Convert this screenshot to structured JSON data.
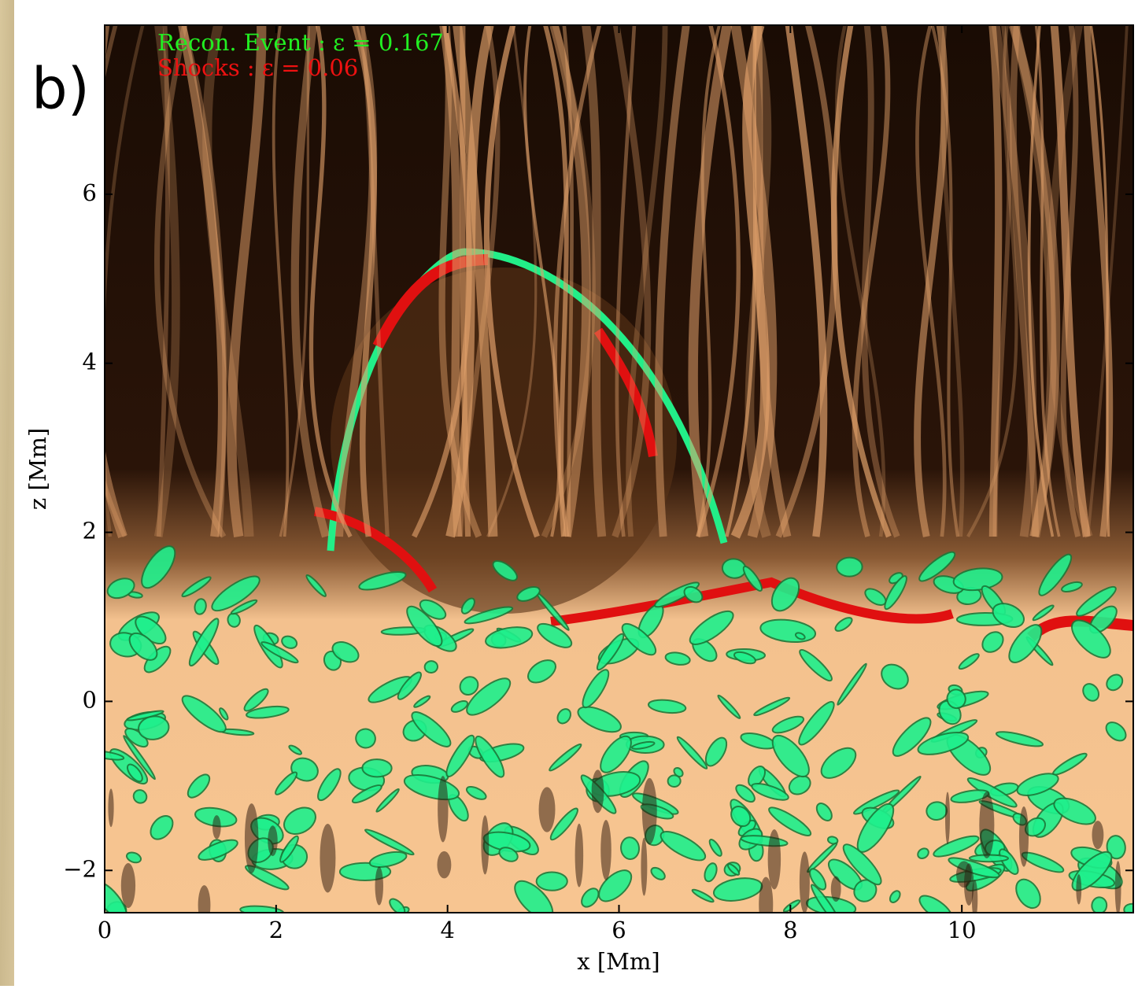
{
  "panel_label": "b)",
  "chart_data": {
    "type": "image",
    "xlabel": "x [Mm]",
    "ylabel": "z [Mm]",
    "xlim": [
      0,
      12
    ],
    "ylim": [
      -2.5,
      8
    ],
    "xticks": [
      0,
      2,
      4,
      6,
      8,
      10
    ],
    "yticks": [
      {
        "value": -2,
        "label": "−2"
      },
      0,
      2,
      4,
      6
    ],
    "legend": [
      {
        "name": "Recon. Event : ε = 0.167",
        "color": "#22ee22"
      },
      {
        "name": "Shocks : ε = 0.06",
        "color": "#ee1111"
      }
    ]
  }
}
